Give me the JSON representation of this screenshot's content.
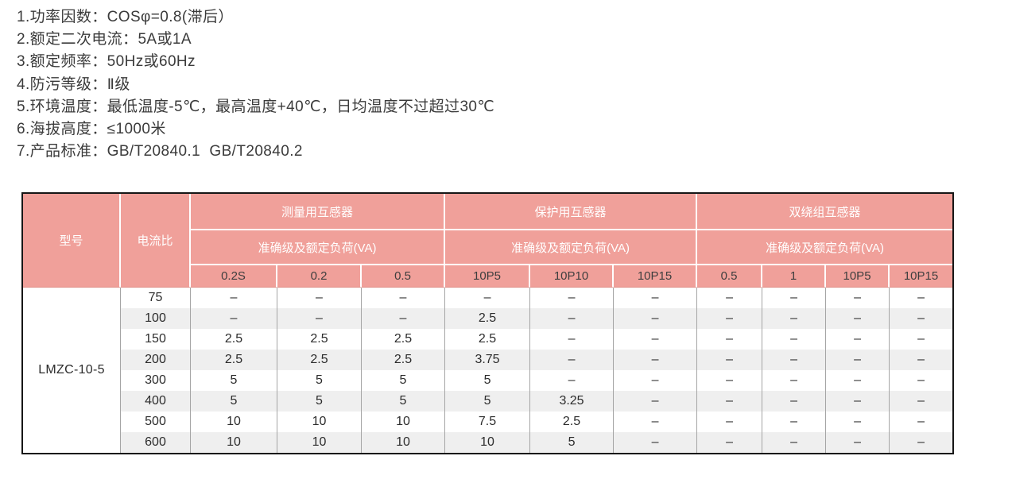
{
  "specs": [
    "1.功率因数：COSφ=0.8(滞后）",
    "2.额定二次电流：5A或1A",
    "3.额定频率：50Hz或60Hz",
    "4.防污等级：Ⅱ级",
    "5.环境温度：最低温度-5℃，最高温度+40℃，日均温度不过超过30℃",
    "6.海拔高度：≤1000米",
    "7.产品标准：GB/T20840.1  GB/T20840.2"
  ],
  "table": {
    "col_model": "型号",
    "col_ratio": "电流比",
    "groups": [
      {
        "title": "测量用互感器",
        "subtitle": "准确级及额定负荷(VA)",
        "cols": [
          "0.2S",
          "0.2",
          "0.5"
        ]
      },
      {
        "title": "保护用互感器",
        "subtitle": "准确级及额定负荷(VA)",
        "cols": [
          "10P5",
          "10P10",
          "10P15"
        ]
      },
      {
        "title": "双绕组互感器",
        "subtitle": "准确级及额定负荷(VA)",
        "cols": [
          "0.5",
          "1",
          "10P5",
          "10P15"
        ]
      }
    ],
    "model": "LMZC-10-5",
    "rows": [
      {
        "ratio": "75",
        "values": [
          "–",
          "–",
          "–",
          "–",
          "–",
          "–",
          "–",
          "–",
          "–",
          "–"
        ]
      },
      {
        "ratio": "100",
        "values": [
          "–",
          "–",
          "–",
          "2.5",
          "–",
          "–",
          "–",
          "–",
          "–",
          "–"
        ]
      },
      {
        "ratio": "150",
        "values": [
          "2.5",
          "2.5",
          "2.5",
          "2.5",
          "–",
          "–",
          "–",
          "–",
          "–",
          "–"
        ]
      },
      {
        "ratio": "200",
        "values": [
          "2.5",
          "2.5",
          "2.5",
          "3.75",
          "–",
          "–",
          "–",
          "–",
          "–",
          "–"
        ]
      },
      {
        "ratio": "300",
        "values": [
          "5",
          "5",
          "5",
          "5",
          "–",
          "–",
          "–",
          "–",
          "–",
          "–"
        ]
      },
      {
        "ratio": "400",
        "values": [
          "5",
          "5",
          "5",
          "5",
          "3.25",
          "–",
          "–",
          "–",
          "–",
          "–"
        ]
      },
      {
        "ratio": "500",
        "values": [
          "10",
          "10",
          "10",
          "7.5",
          "2.5",
          "–",
          "–",
          "–",
          "–",
          "–"
        ]
      },
      {
        "ratio": "600",
        "values": [
          "10",
          "10",
          "10",
          "10",
          "5",
          "–",
          "–",
          "–",
          "–",
          "–"
        ]
      }
    ]
  },
  "colors": {
    "header_bg": "#f0a09a",
    "header_text": "#ffffff",
    "header_sub_text": "#3e3e3e",
    "header_divider": "#ffffff",
    "header_bottom_line": "#df8d85",
    "row_stripe": "#efefef",
    "body_text": "#2c2c2c",
    "grid_line": "#a5a5a5",
    "outer_border": "#161616",
    "page_bg": "#ffffff"
  }
}
